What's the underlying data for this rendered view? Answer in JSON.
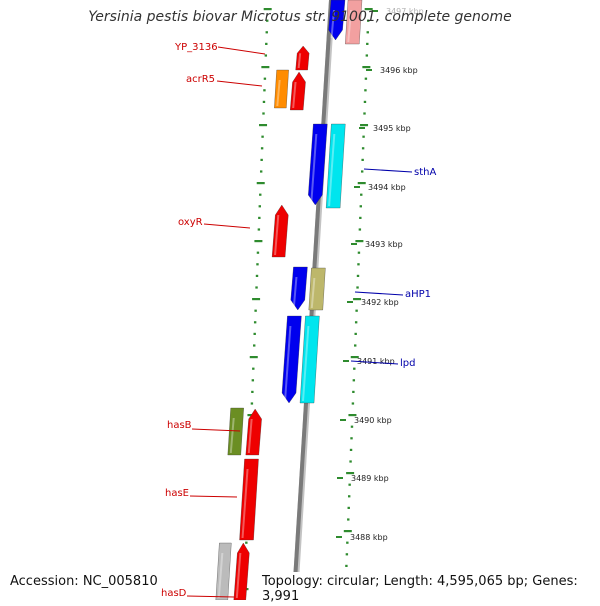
{
  "title": "Yersinia pestis biovar Microtus str. 91001, complete genome",
  "footer": {
    "accession": "Accession: NC_005810",
    "topology": "Topology: circular; Length: 4,595,065 bp; Genes: 3,991"
  },
  "colors": {
    "backbone": "#7a7a7a",
    "ticks": "#2e8b2e",
    "left_label": "#cc0000",
    "right_label": "#0000aa",
    "red": "#ee0000",
    "orange": "#ff8c00",
    "olive": "#6b8e23",
    "gray": "#bbbbbb",
    "pink": "#f2a0a0",
    "blue": "#0000ee",
    "cyan": "#00e5ee",
    "khaki": "#bdb76b"
  },
  "kbp_labels": [
    {
      "text": "3497 kbp",
      "faded": true
    },
    {
      "text": "3496 kbp"
    },
    {
      "text": "3495 kbp"
    },
    {
      "text": "3494 kbp"
    },
    {
      "text": "3493 kbp"
    },
    {
      "text": "3492 kbp"
    },
    {
      "text": "3491 kbp"
    },
    {
      "text": "3490 kbp"
    },
    {
      "text": "3489 kbp"
    },
    {
      "text": "3488 kbp"
    }
  ],
  "left_labels": [
    "YP_3136",
    "acrR5",
    "oxyR",
    "hasB",
    "hasE",
    "hasD"
  ],
  "right_labels": [
    "sthA",
    "aHP1",
    "lpd"
  ]
}
